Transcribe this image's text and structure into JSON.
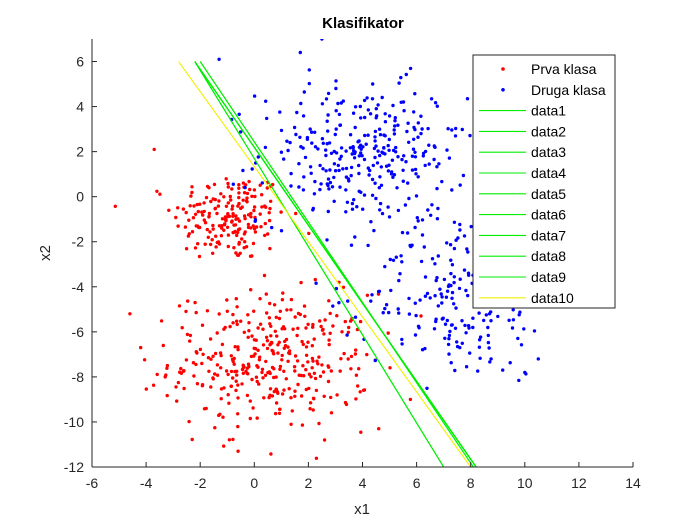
{
  "chart_data": {
    "type": "scatter",
    "title": "Klasifikator",
    "xlabel": "x1",
    "ylabel": "x2",
    "xlim": [
      -6,
      14
    ],
    "ylim": [
      -12,
      7
    ],
    "xticks": [
      -6,
      -4,
      -2,
      0,
      2,
      4,
      6,
      8,
      10,
      12,
      14
    ],
    "yticks": [
      -12,
      -10,
      -8,
      -6,
      -4,
      -2,
      0,
      2,
      4,
      6
    ],
    "grid": false,
    "legend_position": "top-right",
    "colors": {
      "class1": "#ff0000",
      "class2": "#0000ff",
      "line": "#00ee00",
      "line_last": "#f0f000",
      "axes": "#262626"
    },
    "scatter_series": [
      {
        "name": "Prva klasa",
        "color": "#ff0000",
        "clusters": [
          {
            "center": [
              -0.9,
              -0.9
            ],
            "spread": [
              1.05,
              1.0
            ],
            "count": 190
          },
          {
            "center": [
              0.6,
              -7.3
            ],
            "spread": [
              1.85,
              1.5
            ],
            "count": 360
          }
        ],
        "extremes": [
          [
            -4.6,
            -5.2
          ],
          [
            -0.6,
            -11.3
          ],
          [
            -3.7,
            2.1
          ],
          [
            2.6,
            -10.8
          ],
          [
            -4.2,
            -6.7
          ],
          [
            4.6,
            -10.3
          ]
        ]
      },
      {
        "name": "Druga klasa",
        "color": "#0000ff",
        "clusters": [
          {
            "center": [
              4.0,
              1.9
            ],
            "spread": [
              1.9,
              1.55
            ],
            "count": 310
          },
          {
            "center": [
              7.6,
              -4.3
            ],
            "spread": [
              1.7,
              1.9
            ],
            "count": 220
          }
        ],
        "extremes": [
          [
            2.5,
            7.0
          ],
          [
            -1.3,
            6.1
          ],
          [
            11.3,
            -4.3
          ],
          [
            10.0,
            -7.8
          ],
          [
            10.5,
            -7.2
          ],
          [
            1.7,
            6.4
          ]
        ]
      }
    ],
    "boundary_lines": [
      {
        "name": "data1",
        "x": [
          -2.2,
          8.2
        ],
        "y": [
          6.0,
          -12.0
        ],
        "color": "#00ee00"
      },
      {
        "name": "data2",
        "x": [
          -2.0,
          8.1
        ],
        "y": [
          6.0,
          -12.0
        ],
        "color": "#00ee00"
      },
      {
        "name": "data3",
        "x": [
          -2.2,
          8.2
        ],
        "y": [
          6.0,
          -12.0
        ],
        "color": "#00ee00"
      },
      {
        "name": "data4",
        "x": [
          -2.2,
          7.0
        ],
        "y": [
          6.0,
          -12.0
        ],
        "color": "#00ee00"
      },
      {
        "name": "data5",
        "x": [
          -2.2,
          8.2
        ],
        "y": [
          6.0,
          -12.0
        ],
        "color": "#00ee00"
      },
      {
        "name": "data6",
        "x": [
          -2.0,
          8.1
        ],
        "y": [
          6.0,
          -12.0
        ],
        "color": "#00ee00"
      },
      {
        "name": "data7",
        "x": [
          -2.2,
          8.2
        ],
        "y": [
          6.0,
          -12.0
        ],
        "color": "#00ee00"
      },
      {
        "name": "data8",
        "x": [
          -2.2,
          7.0
        ],
        "y": [
          6.0,
          -12.0
        ],
        "color": "#00ee00"
      },
      {
        "name": "data9",
        "x": [
          -2.2,
          8.2
        ],
        "y": [
          6.0,
          -12.0
        ],
        "color": "#00ee00"
      },
      {
        "name": "data10",
        "x": [
          -2.8,
          8.0
        ],
        "y": [
          6.0,
          -12.0
        ],
        "color": "#f0f000"
      }
    ],
    "legend": [
      "Prva klasa",
      "Druga klasa",
      "data1",
      "data2",
      "data3",
      "data4",
      "data5",
      "data6",
      "data7",
      "data8",
      "data9",
      "data10"
    ]
  }
}
